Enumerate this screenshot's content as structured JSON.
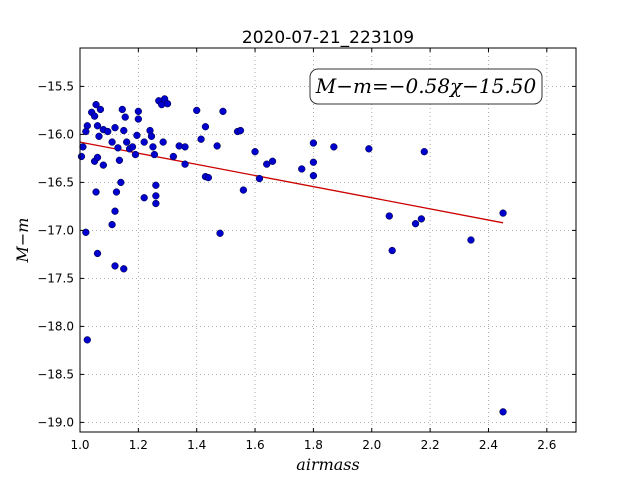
{
  "chart_data": {
    "type": "scatter",
    "title": "2020-07-21_223109",
    "xlabel": "airmass",
    "ylabel": "M−m",
    "xlim": [
      1.0,
      2.7
    ],
    "ylim": [
      -19.1,
      -15.1
    ],
    "y_inverted": true,
    "grid": true,
    "x_ticks": [
      "1.0",
      "1.2",
      "1.4",
      "1.6",
      "1.8",
      "2.0",
      "2.2",
      "2.4",
      "2.6"
    ],
    "y_ticks": [
      "−15.5",
      "−16.0",
      "−16.5",
      "−17.0",
      "−17.5",
      "−18.0",
      "−18.5",
      "−19.0"
    ],
    "annotation": "M−m=−0.58χ−15.50",
    "point_color": "#0000cc",
    "fit_color": "#cc0000",
    "fit": {
      "slope": -0.58,
      "intercept": -15.5,
      "x_range": [
        1.0,
        2.45
      ]
    },
    "points": [
      [
        1.005,
        -16.23
      ],
      [
        1.01,
        -16.13
      ],
      [
        1.02,
        -15.97
      ],
      [
        1.025,
        -15.91
      ],
      [
        1.02,
        -17.02
      ],
      [
        1.025,
        -18.14
      ],
      [
        1.04,
        -15.77
      ],
      [
        1.05,
        -15.81
      ],
      [
        1.055,
        -15.69
      ],
      [
        1.06,
        -15.91
      ],
      [
        1.07,
        -15.74
      ],
      [
        1.065,
        -16.02
      ],
      [
        1.05,
        -16.28
      ],
      [
        1.06,
        -16.24
      ],
      [
        1.08,
        -16.32
      ],
      [
        1.055,
        -16.6
      ],
      [
        1.06,
        -17.24
      ],
      [
        1.08,
        -15.95
      ],
      [
        1.095,
        -15.97
      ],
      [
        1.11,
        -16.08
      ],
      [
        1.12,
        -15.93
      ],
      [
        1.13,
        -16.14
      ],
      [
        1.135,
        -16.27
      ],
      [
        1.14,
        -16.5
      ],
      [
        1.125,
        -16.6
      ],
      [
        1.12,
        -16.8
      ],
      [
        1.11,
        -16.94
      ],
      [
        1.12,
        -17.37
      ],
      [
        1.15,
        -17.4
      ],
      [
        1.145,
        -15.74
      ],
      [
        1.155,
        -15.82
      ],
      [
        1.15,
        -15.96
      ],
      [
        1.16,
        -16.08
      ],
      [
        1.17,
        -16.15
      ],
      [
        1.18,
        -16.13
      ],
      [
        1.19,
        -16.21
      ],
      [
        1.195,
        -16.01
      ],
      [
        1.2,
        -15.76
      ],
      [
        1.2,
        -15.84
      ],
      [
        1.22,
        -16.08
      ],
      [
        1.22,
        -16.66
      ],
      [
        1.24,
        -15.96
      ],
      [
        1.245,
        -16.02
      ],
      [
        1.25,
        -16.13
      ],
      [
        1.255,
        -16.21
      ],
      [
        1.26,
        -16.53
      ],
      [
        1.26,
        -16.64
      ],
      [
        1.26,
        -16.72
      ],
      [
        1.27,
        -15.65
      ],
      [
        1.28,
        -15.69
      ],
      [
        1.29,
        -15.63
      ],
      [
        1.3,
        -15.68
      ],
      [
        1.285,
        -16.08
      ],
      [
        1.32,
        -16.23
      ],
      [
        1.34,
        -16.12
      ],
      [
        1.36,
        -16.13
      ],
      [
        1.36,
        -16.31
      ],
      [
        1.4,
        -15.75
      ],
      [
        1.415,
        -16.05
      ],
      [
        1.43,
        -15.92
      ],
      [
        1.43,
        -16.44
      ],
      [
        1.44,
        -16.45
      ],
      [
        1.47,
        -16.12
      ],
      [
        1.49,
        -15.76
      ],
      [
        1.48,
        -17.03
      ],
      [
        1.54,
        -15.97
      ],
      [
        1.55,
        -15.96
      ],
      [
        1.56,
        -16.58
      ],
      [
        1.6,
        -16.18
      ],
      [
        1.615,
        -16.46
      ],
      [
        1.64,
        -16.31
      ],
      [
        1.66,
        -16.28
      ],
      [
        1.76,
        -16.36
      ],
      [
        1.8,
        -16.09
      ],
      [
        1.8,
        -16.29
      ],
      [
        1.8,
        -16.43
      ],
      [
        1.87,
        -16.13
      ],
      [
        1.99,
        -16.15
      ],
      [
        2.06,
        -16.85
      ],
      [
        2.07,
        -17.21
      ],
      [
        2.15,
        -16.93
      ],
      [
        2.17,
        -16.88
      ],
      [
        2.18,
        -16.18
      ],
      [
        2.34,
        -17.1
      ],
      [
        2.45,
        -16.82
      ],
      [
        2.45,
        -18.89
      ]
    ]
  }
}
